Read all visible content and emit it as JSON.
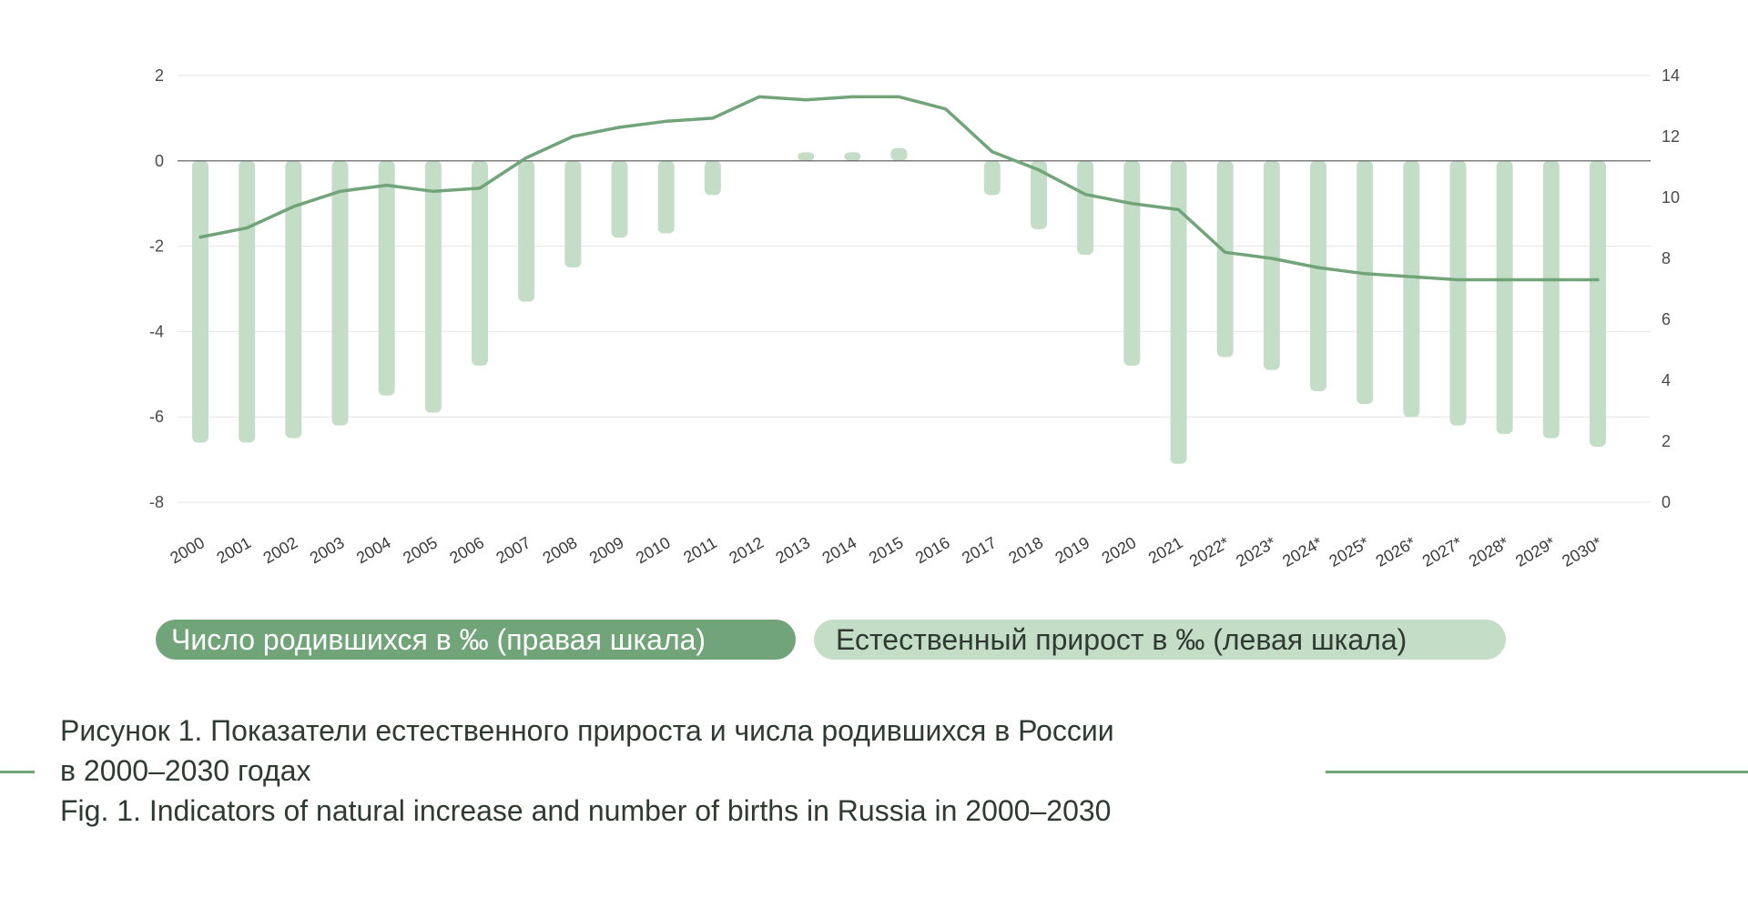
{
  "chart_data": {
    "type": "bar+line",
    "categories": [
      "2000",
      "2001",
      "2002",
      "2003",
      "2004",
      "2005",
      "2006",
      "2007",
      "2008",
      "2009",
      "2010",
      "2011",
      "2012",
      "2013",
      "2014",
      "2015",
      "2016",
      "2017",
      "2018",
      "2019",
      "2020",
      "2021",
      "2022*",
      "2023*",
      "2024*",
      "2025*",
      "2026*",
      "2027*",
      "2028*",
      "2029*",
      "2030*"
    ],
    "series": [
      {
        "name": "Естественный прирост в ‰ (левая шкала)",
        "type": "bar",
        "axis": "left",
        "color": "#c3ddc7",
        "values": [
          -6.6,
          -6.6,
          -6.5,
          -6.2,
          -5.5,
          -5.9,
          -4.8,
          -3.3,
          -2.5,
          -1.8,
          -1.7,
          -0.8,
          0.0,
          0.2,
          0.2,
          0.3,
          0.0,
          -0.8,
          -1.6,
          -2.2,
          -4.8,
          -7.1,
          -4.6,
          -4.9,
          -5.4,
          -5.7,
          -6.0,
          -6.2,
          -6.4,
          -6.5,
          -6.7
        ]
      },
      {
        "name": "Число родившихся в ‰ (правая шкала)",
        "type": "line",
        "axis": "right",
        "color": "#72a47a",
        "values": [
          8.7,
          9.0,
          9.7,
          10.2,
          10.4,
          10.2,
          10.3,
          11.3,
          12.0,
          12.3,
          12.5,
          12.6,
          13.3,
          13.2,
          13.3,
          13.3,
          12.9,
          11.5,
          10.9,
          10.1,
          9.8,
          9.6,
          8.2,
          8.0,
          7.7,
          7.5,
          7.4,
          7.3,
          7.3,
          7.3,
          7.3
        ]
      }
    ],
    "y_left": {
      "min": -8,
      "max": 2,
      "ticks": [
        2,
        0,
        -2,
        -4,
        -6,
        -8
      ]
    },
    "y_right": {
      "min": 0,
      "max": 14,
      "ticks": [
        14,
        12,
        10,
        8,
        6,
        4,
        2,
        0
      ]
    },
    "grid": true,
    "legend": [
      {
        "label": "Число родившихся в ‰ (правая шкала)",
        "color": "#72a47a"
      },
      {
        "label": "Естественный прирост в ‰ (левая шкала)",
        "color": "#c3ddc7"
      }
    ],
    "legend_position": "bottom-left"
  },
  "caption": {
    "line1": "Рисунок 1. Показатели естественного прироста и числа родившихся в России",
    "line2": "в 2000–2030 годах",
    "line3": "Fig. 1. Indicators of natural increase and number of births in Russia in 2000–2030"
  },
  "colors": {
    "accent": "#72a47a",
    "bar": "#c3ddc7",
    "grid": "#e6e6e6",
    "zero_line": "#555555"
  }
}
